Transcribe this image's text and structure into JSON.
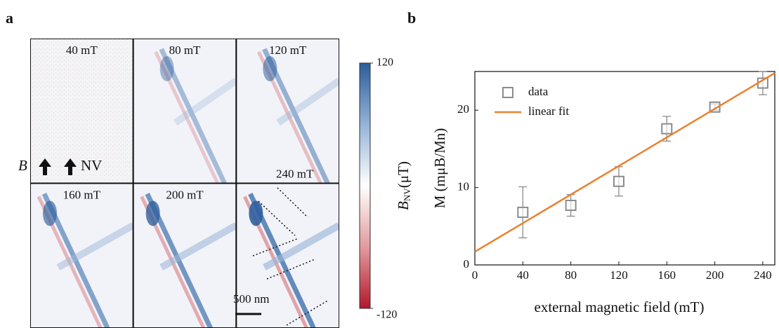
{
  "panel_a": {
    "label": "a",
    "tiles": [
      "40 mT",
      "80 mT",
      "120 mT",
      "160 mT",
      "200 mT",
      "240 mT"
    ],
    "annotations": {
      "field": "B",
      "nv": "NV",
      "scale": "500 nm"
    },
    "colorbar": {
      "label": "B",
      "label_sub": "NV",
      "label_unit": "(μT)",
      "lim": [
        -120,
        120
      ],
      "ticks": [
        -120,
        120
      ]
    }
  },
  "chart_data": {
    "type": "scatter",
    "panel_label": "b",
    "xlabel": "external magnetic field (mT)",
    "ylabel": "M  (mμB/Mn)",
    "xlim": [
      0,
      250
    ],
    "ylim": [
      0,
      25
    ],
    "xticks": [
      0,
      40,
      80,
      120,
      160,
      200,
      240
    ],
    "yticks": [
      0,
      10,
      20
    ],
    "legend": "upper left",
    "series": [
      {
        "name": "data",
        "color": "#8c8c8c",
        "marker": "square",
        "x": [
          40,
          80,
          120,
          160,
          200,
          240
        ],
        "values": [
          6.8,
          7.7,
          10.8,
          17.6,
          20.4,
          23.5
        ],
        "errors": [
          3.3,
          1.4,
          1.9,
          1.6,
          0.4,
          1.5
        ]
      },
      {
        "name": "linear fit",
        "color": "#e8822e",
        "marker": "line",
        "x": [
          0,
          250
        ],
        "values": [
          1.7,
          24.8
        ]
      }
    ]
  }
}
